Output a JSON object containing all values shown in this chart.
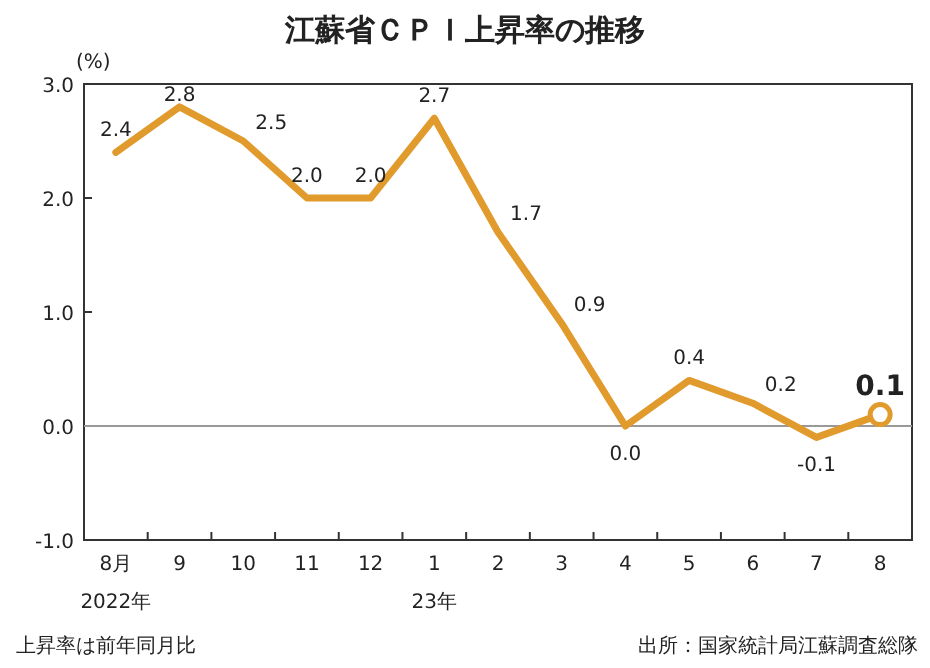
{
  "chart_data": {
    "type": "line",
    "title": "江蘇省ＣＰＩ上昇率の推移",
    "ylabel": "(%)",
    "categories": [
      "8月",
      "9",
      "10",
      "11",
      "12",
      "1",
      "2",
      "3",
      "4",
      "5",
      "6",
      "7",
      "8"
    ],
    "series": [
      {
        "type": "line",
        "color": "#e19a2c",
        "values": [
          2.4,
          2.8,
          2.5,
          2.0,
          2.0,
          2.7,
          1.7,
          0.9,
          0.0,
          0.4,
          0.2,
          -0.1,
          0.1
        ],
        "value_labels": [
          "2.4",
          "2.8",
          "2.5",
          "2.0",
          "2.0",
          "2.7",
          "1.7",
          "0.9",
          "0.0",
          "0.4",
          "0.2",
          "-0.1",
          "0.1"
        ]
      },
      {
        "type": "scatter",
        "color": "#e19a2c",
        "marker": "circle",
        "values": [
          null,
          null,
          null,
          null,
          null,
          null,
          null,
          null,
          null,
          null,
          null,
          null,
          0.1
        ]
      }
    ],
    "ylim": [
      -1.0,
      3.0
    ],
    "yticks": [
      {
        "value": -1.0,
        "label": "-1.0"
      },
      {
        "value": 0.0,
        "label": "0.0"
      },
      {
        "value": 1.0,
        "label": "1.0"
      },
      {
        "value": 2.0,
        "label": "2.0"
      },
      {
        "value": 3.0,
        "label": "3.0"
      }
    ],
    "ref_lines": [
      {
        "axis": "y",
        "value": 0,
        "color": "#999999"
      }
    ],
    "annotations": [
      "2022年",
      "23年",
      "上昇率は前年同月比",
      "出所：国家統計局江蘇調査総隊"
    ]
  }
}
